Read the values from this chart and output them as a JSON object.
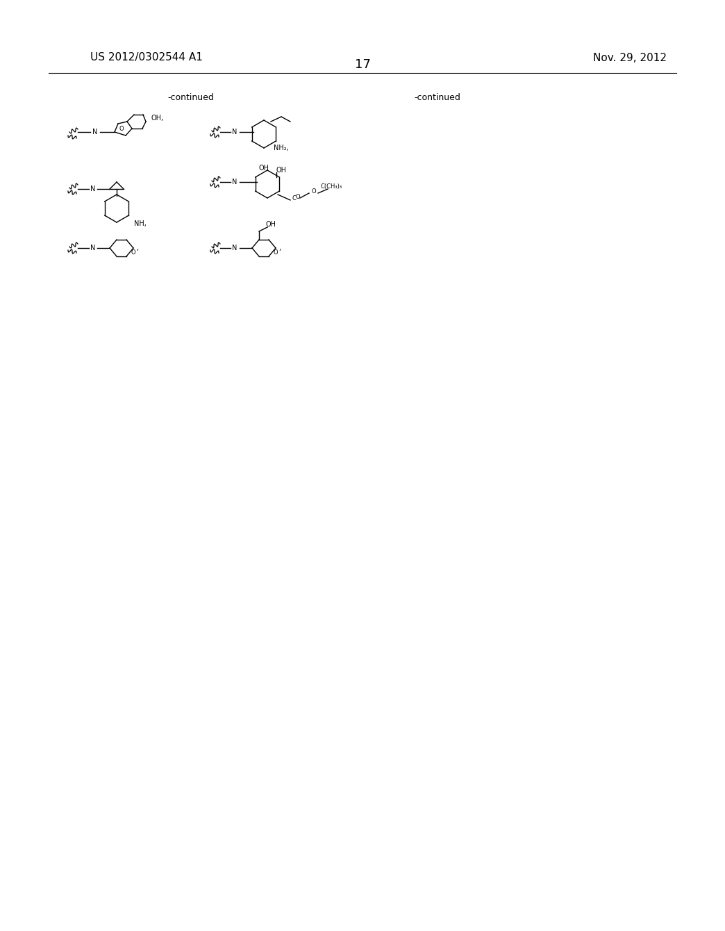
{
  "page_number": "17",
  "top_left": "US 2012/0302544 A1",
  "top_right": "Nov. 29, 2012",
  "continued_left": "-continued",
  "continued_right": "-continued",
  "background": "#ffffff",
  "text_color": "#000000",
  "font_size_header": 11,
  "font_size_page": 13,
  "font_size_continued": 9
}
